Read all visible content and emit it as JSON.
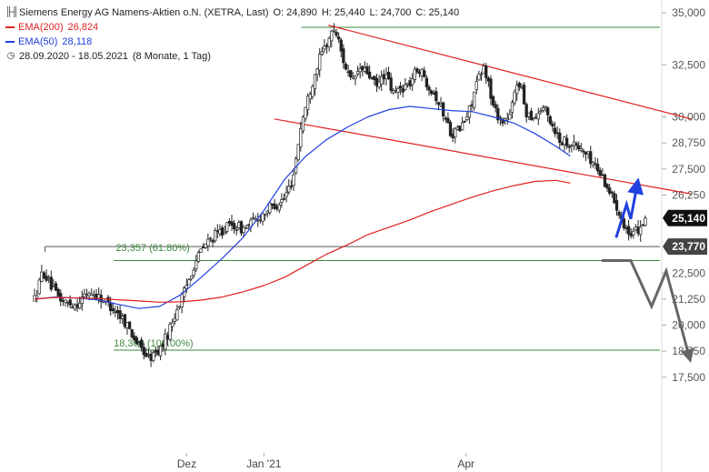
{
  "chart_data": {
    "type": "candlestick",
    "title": "Siemens Energy AG Namens-Aktien o.N. (XETRA, Last)",
    "ohlc": {
      "open_label": "O: 24,890",
      "high_label": "H: 25,440",
      "low_label": "L: 24,700",
      "close_label": "C: 25,140"
    },
    "period_label": "28.09.2020 - 18.05.2021",
    "interval_label": "(8 Monate, 1 Tag)",
    "x_ticks": [
      "Dez",
      "Jan '21",
      "Apr"
    ],
    "y_ticks": [
      "35,000",
      "32,500",
      "30,000",
      "28,750",
      "27,500",
      "26,250",
      "22,500",
      "21,250",
      "20,000",
      "18,750",
      "17,500"
    ],
    "ylim": [
      17200,
      35200
    ],
    "ema200": {
      "label": "EMA(200)",
      "value": "26,824",
      "color": "#e02020",
      "points": [
        [
          0,
          21.25
        ],
        [
          10,
          21.33
        ],
        [
          20,
          21.3
        ],
        [
          30,
          21.28
        ],
        [
          40,
          21.22
        ],
        [
          50,
          21.16
        ],
        [
          60,
          21.1
        ],
        [
          70,
          21.12
        ],
        [
          80,
          21.2
        ],
        [
          90,
          21.35
        ],
        [
          100,
          21.6
        ],
        [
          110,
          21.9
        ],
        [
          120,
          22.3
        ],
        [
          130,
          22.85
        ],
        [
          140,
          23.4
        ],
        [
          150,
          23.85
        ],
        [
          160,
          24.35
        ],
        [
          170,
          24.7
        ],
        [
          180,
          25.05
        ],
        [
          190,
          25.45
        ],
        [
          200,
          25.8
        ],
        [
          210,
          26.15
        ],
        [
          220,
          26.45
        ],
        [
          230,
          26.7
        ],
        [
          240,
          26.9
        ],
        [
          250,
          26.95
        ],
        [
          257,
          26.82
        ]
      ]
    },
    "ema50": {
      "label": "EMA(50)",
      "value": "28,118",
      "color": "#2040e0",
      "points": [
        [
          0,
          21.25
        ],
        [
          10,
          21.35
        ],
        [
          20,
          21.3
        ],
        [
          30,
          21.22
        ],
        [
          40,
          21.0
        ],
        [
          50,
          20.8
        ],
        [
          60,
          20.9
        ],
        [
          70,
          21.45
        ],
        [
          80,
          22.3
        ],
        [
          90,
          23.2
        ],
        [
          100,
          24.2
        ],
        [
          110,
          25.5
        ],
        [
          120,
          27.0
        ],
        [
          130,
          28.1
        ],
        [
          140,
          28.9
        ],
        [
          150,
          29.5
        ],
        [
          160,
          30.0
        ],
        [
          170,
          30.35
        ],
        [
          180,
          30.5
        ],
        [
          190,
          30.4
        ],
        [
          200,
          30.3
        ],
        [
          210,
          30.25
        ],
        [
          220,
          30.0
        ],
        [
          230,
          29.7
        ],
        [
          240,
          29.2
        ],
        [
          250,
          28.6
        ],
        [
          257,
          28.12
        ]
      ]
    },
    "candles": {
      "count": 258,
      "knots": [
        [
          0,
          21.25
        ],
        [
          4,
          22.6
        ],
        [
          10,
          21.5
        ],
        [
          14,
          21.1
        ],
        [
          20,
          21.0
        ],
        [
          26,
          21.6
        ],
        [
          32,
          21.3
        ],
        [
          38,
          20.8
        ],
        [
          44,
          20.1
        ],
        [
          50,
          19.0
        ],
        [
          55,
          18.4
        ],
        [
          60,
          18.8
        ],
        [
          64,
          19.6
        ],
        [
          68,
          20.7
        ],
        [
          72,
          21.6
        ],
        [
          76,
          22.8
        ],
        [
          80,
          23.6
        ],
        [
          84,
          24.1
        ],
        [
          88,
          24.4
        ],
        [
          92,
          24.7
        ],
        [
          96,
          24.8
        ],
        [
          100,
          24.6
        ],
        [
          104,
          24.9
        ],
        [
          108,
          25.2
        ],
        [
          112,
          25.6
        ],
        [
          116,
          25.8
        ],
        [
          120,
          26.1
        ],
        [
          124,
          27.1
        ],
        [
          128,
          29.7
        ],
        [
          132,
          31.2
        ],
        [
          136,
          32.6
        ],
        [
          140,
          33.5
        ],
        [
          144,
          34.3
        ],
        [
          148,
          32.8
        ],
        [
          152,
          31.6
        ],
        [
          156,
          32.3
        ],
        [
          160,
          32.1
        ],
        [
          164,
          31.4
        ],
        [
          168,
          32.1
        ],
        [
          172,
          31.1
        ],
        [
          176,
          31.4
        ],
        [
          180,
          31.6
        ],
        [
          184,
          32.4
        ],
        [
          188,
          31.7
        ],
        [
          192,
          31.1
        ],
        [
          196,
          30.2
        ],
        [
          200,
          29.2
        ],
        [
          204,
          29.4
        ],
        [
          208,
          30.1
        ],
        [
          212,
          31.6
        ],
        [
          216,
          32.4
        ],
        [
          220,
          30.5
        ],
        [
          224,
          29.8
        ],
        [
          228,
          30.0
        ],
        [
          232,
          31.9
        ],
        [
          236,
          30.2
        ],
        [
          240,
          30.0
        ],
        [
          244,
          30.5
        ],
        [
          248,
          29.7
        ],
        [
          252,
          28.9
        ],
        [
          256,
          28.8
        ],
        [
          260,
          28.6
        ],
        [
          264,
          28.3
        ],
        [
          268,
          27.8
        ],
        [
          272,
          27.2
        ],
        [
          276,
          26.4
        ],
        [
          280,
          25.6
        ],
        [
          284,
          24.6
        ],
        [
          286,
          24.1
        ],
        [
          290,
          24.7
        ],
        [
          294,
          25.14
        ]
      ],
      "last_close": 25.14
    },
    "annotations": {
      "fib_top": {
        "level": 23.357,
        "label": "23,357 (61.80%)"
      },
      "fib_bottom": {
        "level": 18.36,
        "label": "18,360 (100.00%)"
      },
      "resistance": {
        "level": 34.3
      },
      "support_zone": {
        "upper": 23.77,
        "lower": 23.1
      },
      "price_tag_close": {
        "value": 25.14,
        "label": "25,140"
      },
      "price_tag_support": {
        "value": 23.77,
        "label": "23,770"
      }
    },
    "channel": {
      "color": "#e02020",
      "upper": [
        [
          141,
          34.4
        ],
        [
          315,
          29.9
        ]
      ],
      "lower": [
        [
          115,
          29.9
        ],
        [
          315,
          26.3
        ]
      ]
    },
    "scenarios": {
      "bullish": {
        "color": "#2040e0",
        "path": [
          [
            279,
            24.2
          ],
          [
            284,
            25.8
          ],
          [
            286,
            25.1
          ],
          [
            289,
            26.7
          ]
        ]
      },
      "bearish": {
        "color": "#666666",
        "path": [
          [
            272,
            23.1
          ],
          [
            286,
            23.1
          ],
          [
            296,
            20.9
          ],
          [
            303,
            22.6
          ],
          [
            314,
            18.5
          ]
        ]
      }
    },
    "month_ticks": [
      {
        "label": "Dez",
        "index": 73
      },
      {
        "label": "Jan '21",
        "index": 110
      },
      {
        "label": "Apr",
        "index": 207
      }
    ]
  }
}
